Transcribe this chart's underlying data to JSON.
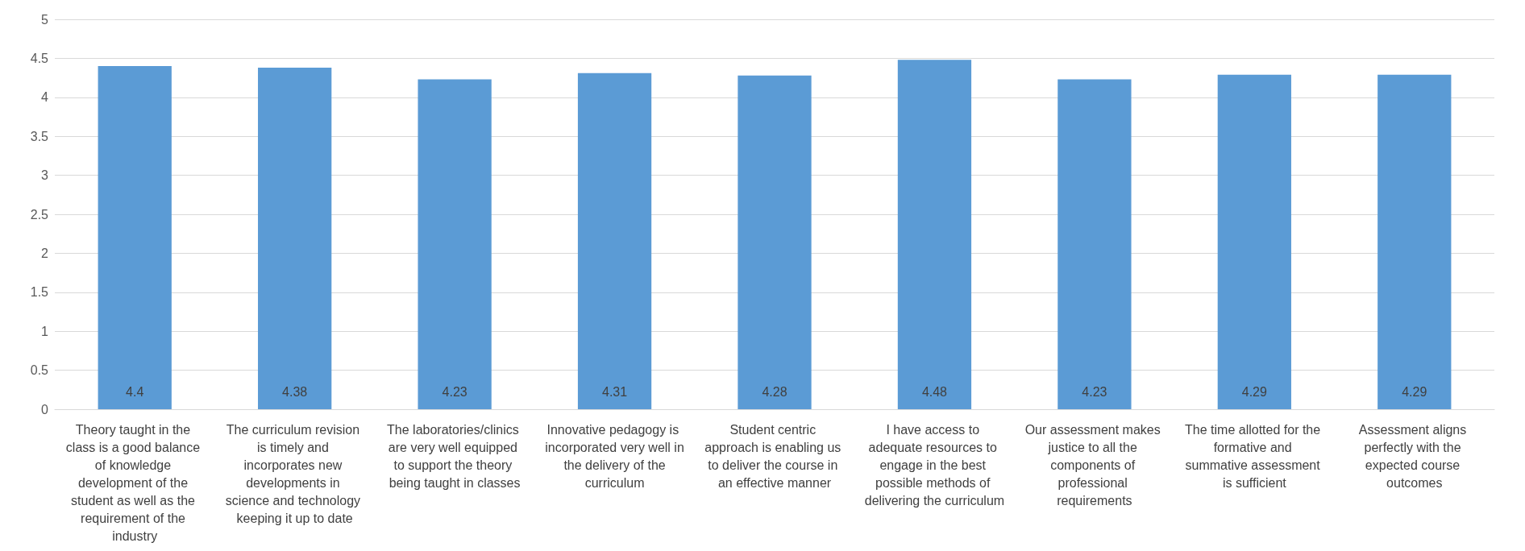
{
  "chart_data": {
    "type": "bar",
    "categories": [
      "Theory taught in the class is a good balance of knowledge development of the student as well as the requirement of the industry",
      "The curriculum revision is timely and incorporates new developments in science and technology keeping it up to date",
      "The laboratories/clinics are very well equipped to support the theory being taught in classes",
      "Innovative pedagogy is incorporated very well in the delivery of the curriculum",
      "Student centric approach is enabling us to deliver the course in an effective manner",
      "I have access to adequate resources to engage in the best possible methods of delivering the curriculum",
      "Our assessment makes justice to all the components of professional requirements",
      "The time allotted for the formative and summative assessment is sufficient",
      "Assessment aligns perfectly with the expected course outcomes"
    ],
    "values": [
      4.4,
      4.38,
      4.23,
      4.31,
      4.28,
      4.48,
      4.23,
      4.29,
      4.29
    ],
    "color": "#5b9bd5",
    "ylim": [
      0,
      5
    ],
    "yticks": [
      0,
      0.5,
      1,
      1.5,
      2,
      2.5,
      3,
      3.5,
      4,
      4.5,
      5
    ],
    "grid": "y",
    "data_labels": true
  }
}
